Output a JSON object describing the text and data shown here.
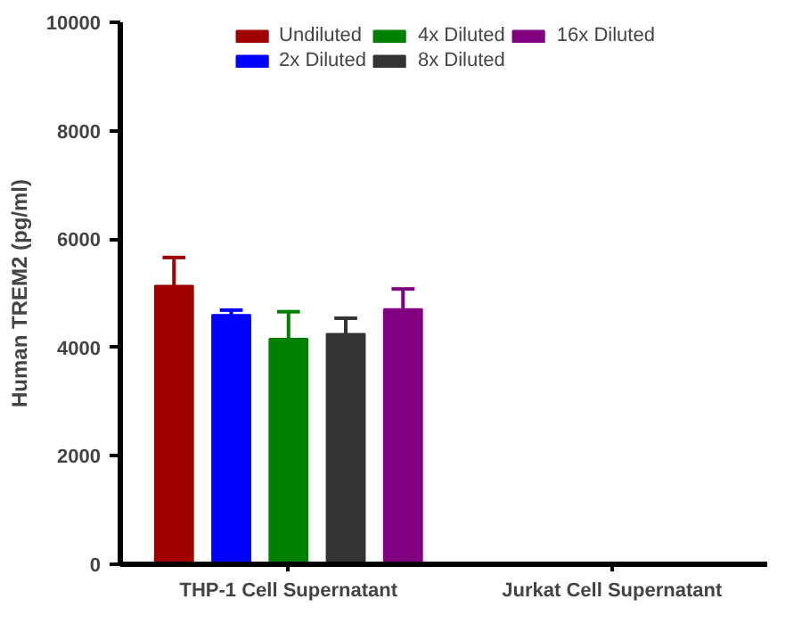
{
  "chart_data": {
    "type": "bar",
    "ylabel": "Human TREM2 (pg/ml)",
    "categories": [
      "THP-1 Cell Supernatant",
      "Jurkat Cell Supernatant"
    ],
    "series": [
      {
        "name": "Undiluted",
        "color": "#a00000",
        "values": [
          5140,
          0
        ],
        "errors": [
          520,
          null
        ]
      },
      {
        "name": "2x Diluted",
        "color": "#0000ff",
        "values": [
          4600,
          0
        ],
        "errors": [
          90,
          null
        ]
      },
      {
        "name": "4x Diluted",
        "color": "#008000",
        "values": [
          4160,
          0
        ],
        "errors": [
          500,
          null
        ]
      },
      {
        "name": "8x Diluted",
        "color": "#333333",
        "values": [
          4250,
          0
        ],
        "errors": [
          290,
          null
        ]
      },
      {
        "name": "16x Diluted",
        "color": "#800080",
        "values": [
          4710,
          0
        ],
        "errors": [
          370,
          null
        ]
      }
    ],
    "ylim": [
      0,
      10000
    ],
    "yticks": [
      0,
      2000,
      4000,
      6000,
      8000,
      10000
    ],
    "grid": false,
    "legend": "top"
  }
}
